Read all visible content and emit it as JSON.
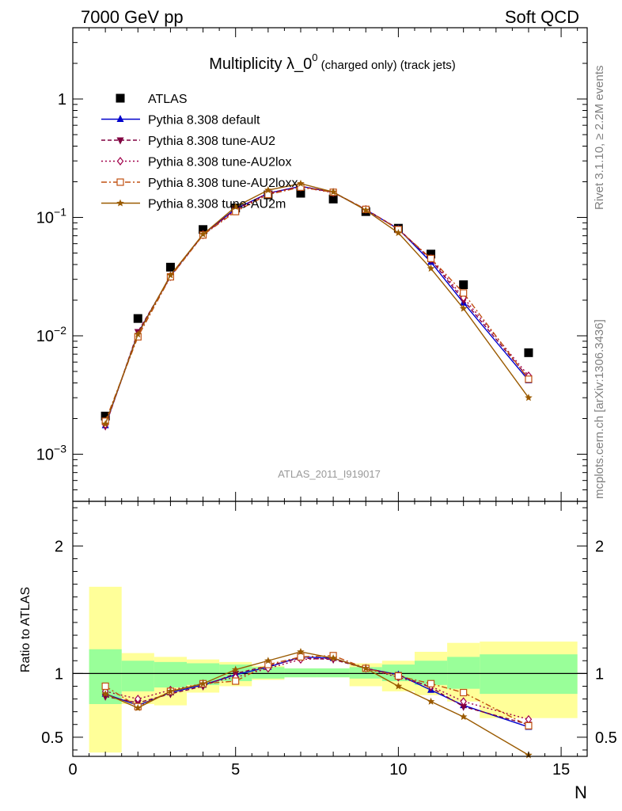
{
  "header": {
    "left": "7000 GeV pp",
    "right": "Soft QCD"
  },
  "title": {
    "main": "Multiplicity λ_0",
    "sup": "0",
    "sub": " (charged only) (track jets)"
  },
  "side": {
    "rivet": "Rivet 3.1.10, ≥ 2.2M events",
    "mcplots": "mcplots.cern.ch [arXiv:1306.3436]"
  },
  "watermark": "ATLAS_2011_I919017",
  "colors": {
    "data": "#000000",
    "default": "#0000cc",
    "au2": "#800040",
    "au2lox": "#a0004a",
    "au2loxx": "#c05010",
    "au2m": "#9a5a00",
    "band_stat": "#99ff99",
    "band_total": "#ffff99"
  },
  "chart_data": [
    {
      "type": "scatter",
      "panel": "main",
      "yscale": "log",
      "ylim": [
        0.0004,
        4.0
      ],
      "xlim": [
        0,
        15.8
      ],
      "y_ticks": [
        "10^-3",
        "10^-2",
        "10^-1",
        "1"
      ],
      "legend_placement": "top-left",
      "x": [
        1,
        2,
        3,
        4,
        5,
        6,
        7,
        8,
        9,
        10,
        11,
        12,
        14
      ],
      "series": [
        {
          "name": "ATLAS",
          "key": "data",
          "marker": "square",
          "line": "none",
          "values": [
            0.0021,
            0.014,
            0.038,
            0.079,
            0.12,
            0.155,
            0.16,
            0.143,
            0.112,
            0.081,
            0.049,
            0.027,
            0.0072
          ]
        },
        {
          "name": "Pythia 8.308 default",
          "key": "default",
          "marker": "triangle-up",
          "line": "solid",
          "values": [
            0.00175,
            0.0105,
            0.032,
            0.072,
            0.118,
            0.16,
            0.183,
            0.163,
            0.116,
            0.08,
            0.042,
            0.019,
            0.0042
          ]
        },
        {
          "name": "Pythia 8.308 tune-AU2",
          "key": "au2",
          "marker": "triangle-down",
          "line": "dashed",
          "values": [
            0.00172,
            0.0108,
            0.0315,
            0.071,
            0.117,
            0.16,
            0.183,
            0.163,
            0.117,
            0.08,
            0.044,
            0.02,
            0.0044
          ]
        },
        {
          "name": "Pythia 8.308 tune-AU2lox",
          "key": "au2lox",
          "marker": "diamond",
          "line": "dotted",
          "values": [
            0.00178,
            0.0102,
            0.032,
            0.072,
            0.115,
            0.158,
            0.18,
            0.162,
            0.117,
            0.079,
            0.045,
            0.021,
            0.0046
          ]
        },
        {
          "name": "Pythia 8.308 tune-AU2loxx",
          "key": "au2loxx",
          "marker": "square-open",
          "line": "dashdot",
          "values": [
            0.0019,
            0.0098,
            0.0315,
            0.071,
            0.112,
            0.156,
            0.18,
            0.163,
            0.117,
            0.079,
            0.045,
            0.023,
            0.0043
          ]
        },
        {
          "name": "Pythia 8.308 tune-AU2m",
          "key": "au2m",
          "marker": "star",
          "line": "solid",
          "values": [
            0.0018,
            0.0103,
            0.0325,
            0.072,
            0.123,
            0.17,
            0.193,
            0.164,
            0.115,
            0.074,
            0.037,
            0.017,
            0.003
          ]
        }
      ]
    },
    {
      "type": "scatter",
      "panel": "ratio",
      "ylabel": "Ratio to ATLAS",
      "xlabel": "N",
      "ylim": [
        0.35,
        2.35
      ],
      "xlim": [
        0,
        15.8
      ],
      "x_ticks": [
        "0",
        "5",
        "10",
        "15"
      ],
      "y_ticks": [
        "0.5",
        "1",
        "2"
      ],
      "bands": {
        "edges": [
          0.5,
          1.5,
          2.5,
          3.5,
          4.5,
          5.5,
          6.5,
          7.5,
          8.5,
          9.5,
          10.5,
          11.5,
          12.5,
          15.5
        ],
        "stat": [
          [
            0.76,
            1.19
          ],
          [
            0.86,
            1.1
          ],
          [
            0.89,
            1.09
          ],
          [
            0.91,
            1.08
          ],
          [
            0.94,
            1.07
          ],
          [
            0.96,
            1.05
          ],
          [
            0.97,
            1.04
          ],
          [
            0.97,
            1.04
          ],
          [
            0.96,
            1.05
          ],
          [
            0.94,
            1.07
          ],
          [
            0.91,
            1.1
          ],
          [
            0.88,
            1.13
          ],
          [
            0.84,
            1.15
          ]
        ],
        "total": [
          [
            0.38,
            1.68
          ],
          [
            0.76,
            1.16
          ],
          [
            0.75,
            1.13
          ],
          [
            0.85,
            1.11
          ],
          [
            0.9,
            1.09
          ],
          [
            0.95,
            1.06
          ],
          [
            0.97,
            1.04
          ],
          [
            0.97,
            1.04
          ],
          [
            0.9,
            1.08
          ],
          [
            0.86,
            1.1
          ],
          [
            0.83,
            1.17
          ],
          [
            0.78,
            1.24
          ],
          [
            0.65,
            1.25
          ]
        ]
      },
      "x": [
        1,
        2,
        3,
        4,
        5,
        6,
        7,
        8,
        9,
        10,
        11,
        12,
        14
      ],
      "series": [
        {
          "name": "Pythia 8.308 default",
          "key": "default",
          "marker": "triangle-up",
          "line": "solid",
          "values": [
            0.84,
            0.75,
            0.85,
            0.91,
            0.99,
            1.05,
            1.13,
            1.12,
            1.04,
            0.99,
            0.87,
            0.75,
            0.58
          ]
        },
        {
          "name": "Pythia 8.308 tune-AU2",
          "key": "au2",
          "marker": "triangle-down",
          "line": "dashed",
          "values": [
            0.82,
            0.77,
            0.84,
            0.9,
            1.0,
            1.06,
            1.12,
            1.11,
            1.04,
            0.99,
            0.89,
            0.74,
            0.6
          ]
        },
        {
          "name": "Pythia 8.308 tune-AU2lox",
          "key": "au2lox",
          "marker": "diamond",
          "line": "dotted",
          "values": [
            0.86,
            0.8,
            0.87,
            0.92,
            0.97,
            1.04,
            1.11,
            1.12,
            1.04,
            0.97,
            0.9,
            0.78,
            0.64
          ]
        },
        {
          "name": "Pythia 8.308 tune-AU2loxx",
          "key": "au2loxx",
          "marker": "square-open",
          "line": "dashdot",
          "values": [
            0.9,
            0.74,
            0.86,
            0.92,
            0.94,
            1.07,
            1.13,
            1.14,
            1.04,
            0.98,
            0.92,
            0.85,
            0.59
          ]
        },
        {
          "name": "Pythia 8.308 tune-AU2m",
          "key": "au2m",
          "marker": "star",
          "line": "solid",
          "values": [
            0.84,
            0.73,
            0.86,
            0.92,
            1.03,
            1.1,
            1.17,
            1.12,
            1.04,
            0.9,
            0.78,
            0.66,
            0.36
          ]
        }
      ]
    }
  ]
}
